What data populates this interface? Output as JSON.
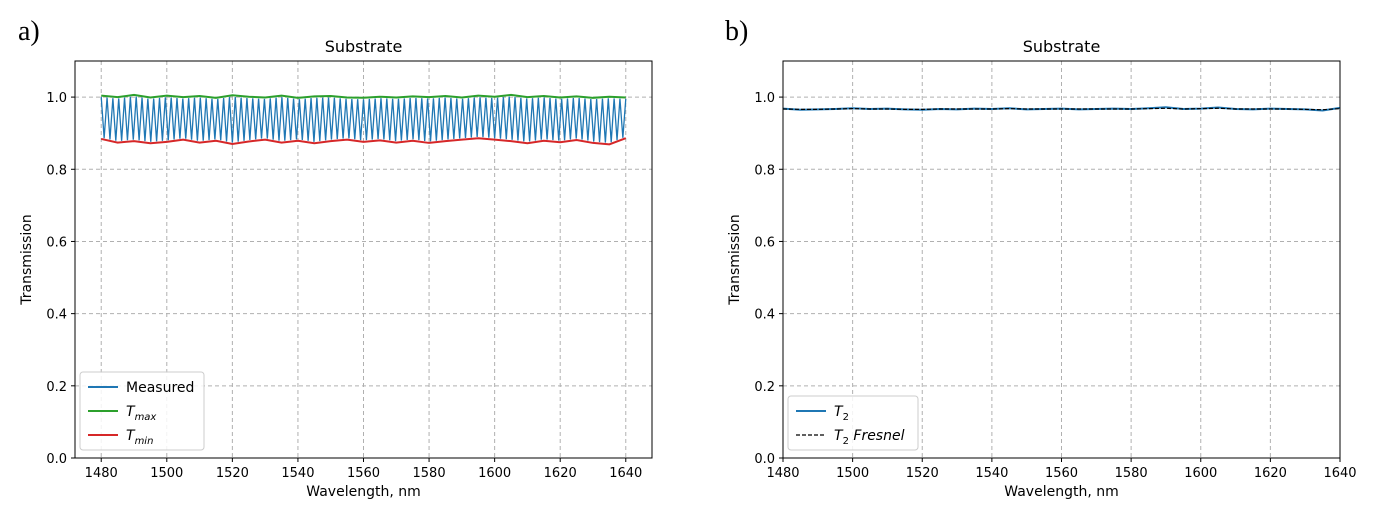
{
  "chart_data": [
    {
      "panel_label": "a)",
      "type": "line",
      "title": "Substrate",
      "xlabel": "Wavelength, nm",
      "ylabel": "Transmission",
      "xlim": [
        1472,
        1648
      ],
      "ylim": [
        0.0,
        1.1
      ],
      "xticks": [
        1480,
        1500,
        1520,
        1540,
        1560,
        1580,
        1600,
        1620,
        1640
      ],
      "yticks": [
        0.0,
        0.2,
        0.4,
        0.6,
        0.8,
        1.0
      ],
      "grid": true,
      "legend_position": "lower-left",
      "series": [
        {
          "name": "Measured",
          "color": "#1f77b4",
          "style": "oscillating",
          "x_range": [
            1480,
            1640
          ],
          "periods": 90,
          "upper_envelope": "Tmax",
          "lower_envelope": "Tmin"
        },
        {
          "name": "T",
          "name_sub": "max",
          "color": "#2ca02c",
          "x": [
            1480,
            1485,
            1490,
            1495,
            1500,
            1505,
            1510,
            1515,
            1520,
            1525,
            1530,
            1535,
            1540,
            1545,
            1550,
            1555,
            1560,
            1565,
            1570,
            1575,
            1580,
            1585,
            1590,
            1595,
            1600,
            1605,
            1610,
            1615,
            1620,
            1625,
            1630,
            1635,
            1640
          ],
          "y": [
            1.004,
            1.0,
            1.006,
            0.999,
            1.004,
            1.0,
            1.003,
            0.998,
            1.005,
            1.001,
            0.999,
            1.004,
            0.998,
            1.002,
            1.003,
            0.999,
            0.998,
            1.001,
            0.999,
            1.002,
            1.0,
            1.003,
            0.999,
            1.004,
            1.001,
            1.006,
            1.0,
            1.003,
            0.999,
            1.002,
            0.998,
            1.001,
            0.999
          ]
        },
        {
          "name": "T",
          "name_sub": "min",
          "color": "#d62728",
          "x": [
            1480,
            1485,
            1490,
            1495,
            1500,
            1505,
            1510,
            1515,
            1520,
            1525,
            1530,
            1535,
            1540,
            1545,
            1550,
            1555,
            1560,
            1565,
            1570,
            1575,
            1580,
            1585,
            1590,
            1595,
            1600,
            1605,
            1610,
            1615,
            1620,
            1625,
            1630,
            1635,
            1640
          ],
          "y": [
            0.884,
            0.874,
            0.878,
            0.872,
            0.876,
            0.882,
            0.874,
            0.879,
            0.87,
            0.877,
            0.882,
            0.874,
            0.879,
            0.872,
            0.878,
            0.882,
            0.876,
            0.88,
            0.874,
            0.879,
            0.873,
            0.878,
            0.882,
            0.886,
            0.882,
            0.878,
            0.872,
            0.879,
            0.875,
            0.881,
            0.873,
            0.869,
            0.886
          ]
        }
      ]
    },
    {
      "panel_label": "b)",
      "type": "line",
      "title": "Substrate",
      "xlabel": "Wavelength, nm",
      "ylabel": "Transmission",
      "xlim": [
        1480,
        1640
      ],
      "ylim": [
        0.0,
        1.1
      ],
      "xticks": [
        1480,
        1500,
        1520,
        1540,
        1560,
        1580,
        1600,
        1620,
        1640
      ],
      "yticks": [
        0.0,
        0.2,
        0.4,
        0.6,
        0.8,
        1.0
      ],
      "grid": true,
      "legend_position": "lower-left",
      "series": [
        {
          "name": "T",
          "name_sub": "2",
          "color": "#1f77b4",
          "linestyle": "solid",
          "x": [
            1480,
            1485,
            1490,
            1495,
            1500,
            1505,
            1510,
            1515,
            1520,
            1525,
            1530,
            1535,
            1540,
            1545,
            1550,
            1555,
            1560,
            1565,
            1570,
            1575,
            1580,
            1585,
            1590,
            1595,
            1600,
            1605,
            1610,
            1615,
            1620,
            1625,
            1630,
            1635,
            1640
          ],
          "y": [
            0.968,
            0.965,
            0.966,
            0.967,
            0.969,
            0.967,
            0.968,
            0.966,
            0.965,
            0.967,
            0.966,
            0.968,
            0.967,
            0.969,
            0.966,
            0.967,
            0.968,
            0.966,
            0.967,
            0.968,
            0.967,
            0.969,
            0.972,
            0.967,
            0.968,
            0.971,
            0.967,
            0.966,
            0.968,
            0.967,
            0.966,
            0.963,
            0.97
          ]
        },
        {
          "name": "T",
          "name_sub": "2",
          "name_suffix": " Fresnel",
          "color": "#000000",
          "linestyle": "dashed",
          "x": [
            1480,
            1485,
            1490,
            1495,
            1500,
            1505,
            1510,
            1515,
            1520,
            1525,
            1530,
            1535,
            1540,
            1545,
            1550,
            1555,
            1560,
            1565,
            1570,
            1575,
            1580,
            1585,
            1590,
            1595,
            1600,
            1605,
            1610,
            1615,
            1620,
            1625,
            1630,
            1635,
            1640
          ],
          "y": [
            0.967,
            0.966,
            0.966,
            0.967,
            0.968,
            0.967,
            0.967,
            0.966,
            0.966,
            0.967,
            0.967,
            0.967,
            0.967,
            0.968,
            0.967,
            0.967,
            0.967,
            0.967,
            0.967,
            0.967,
            0.967,
            0.968,
            0.969,
            0.967,
            0.968,
            0.969,
            0.967,
            0.967,
            0.967,
            0.967,
            0.966,
            0.965,
            0.968
          ]
        }
      ]
    }
  ]
}
